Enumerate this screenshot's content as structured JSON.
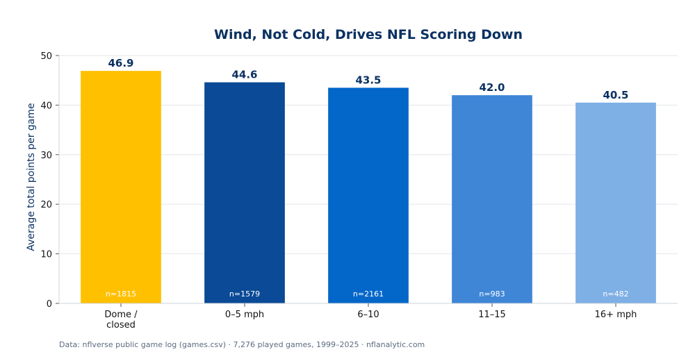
{
  "chart_data": {
    "type": "bar",
    "title": "Wind, Not Cold, Drives NFL Scoring Down",
    "xlabel": "",
    "ylabel": "Average total points per game",
    "ylim": [
      0,
      50
    ],
    "yticks": [
      0,
      10,
      20,
      30,
      40,
      50
    ],
    "grid": true,
    "categories": [
      [
        "Dome /",
        "closed"
      ],
      [
        "0–5 mph"
      ],
      [
        "6–10"
      ],
      [
        "11–15"
      ],
      [
        "16+ mph"
      ]
    ],
    "values": [
      46.9,
      44.6,
      43.5,
      42.0,
      40.5
    ],
    "value_labels": [
      "46.9",
      "44.6",
      "43.5",
      "42.0",
      "40.5"
    ],
    "sample_labels": [
      "n=1815",
      "n=1579",
      "n=2161",
      "n=983",
      "n=482"
    ],
    "colors": [
      "#ffc000",
      "#0a4a96",
      "#0366c9",
      "#3f86d6",
      "#7eafe5"
    ],
    "footnote": "Data: nflverse public game log (games.csv) · 7,276 played games, 1999–2025 · nflanalytic.com"
  }
}
